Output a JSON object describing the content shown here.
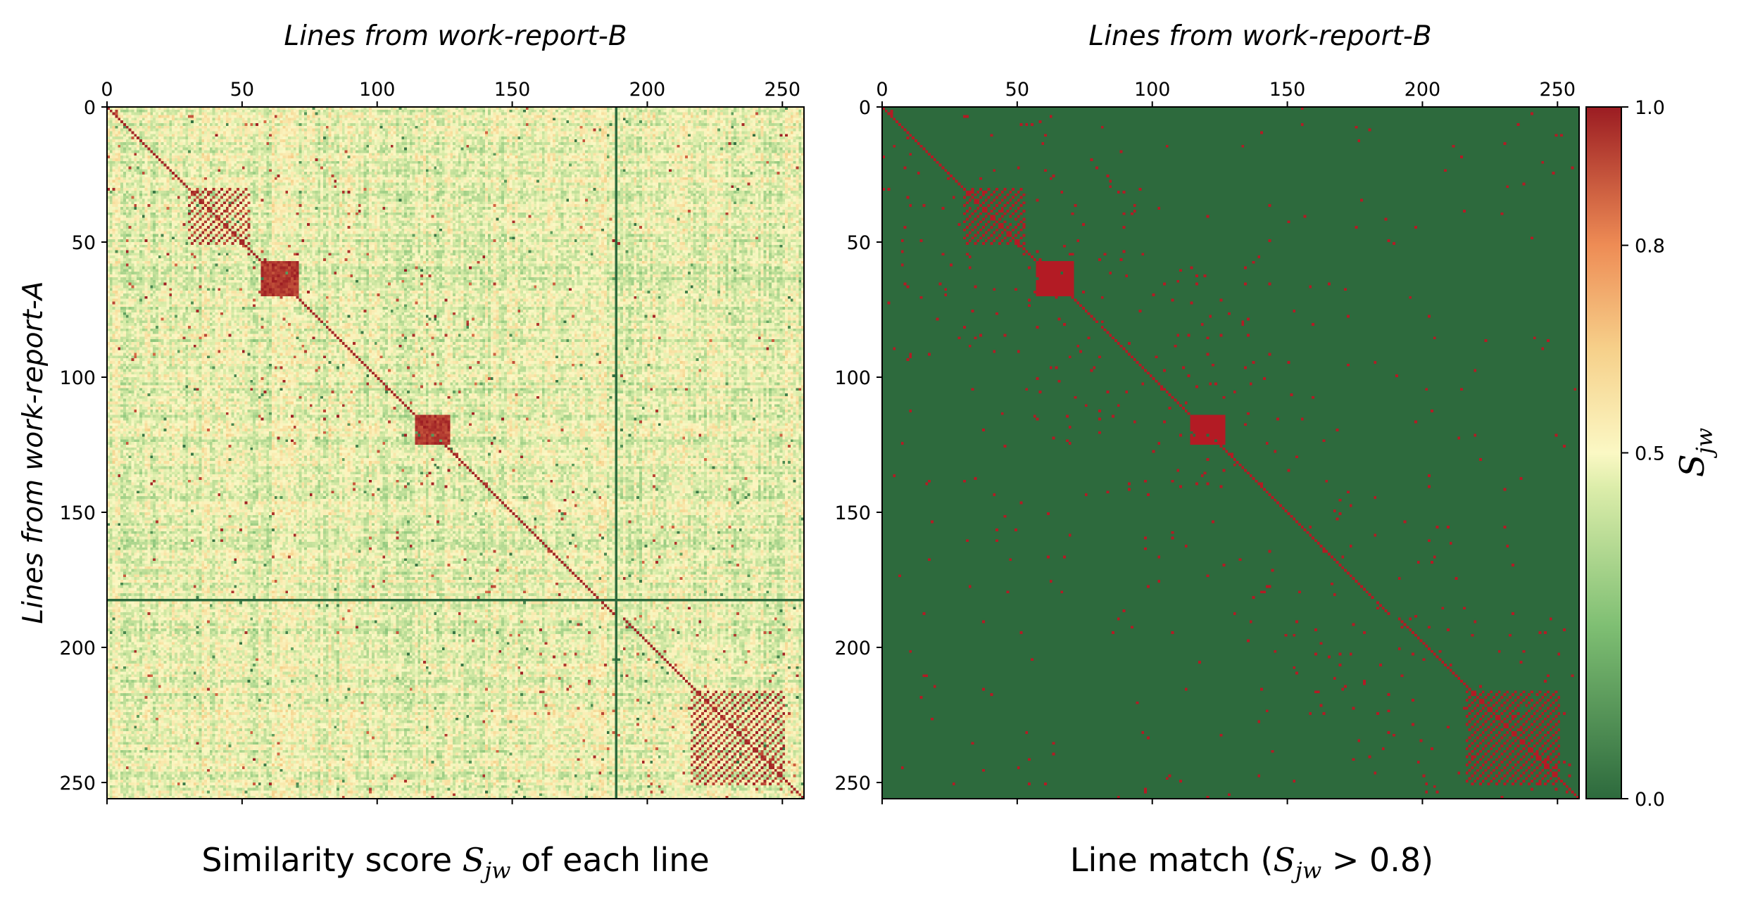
{
  "chart_data": [
    {
      "type": "heatmap",
      "xlabel": "Lines from work-report-B",
      "ylabel": "Lines from work-report-A",
      "x_ticks": [
        0,
        50,
        100,
        150,
        200,
        250
      ],
      "y_ticks": [
        0,
        50,
        100,
        150,
        200,
        250
      ],
      "xlim": [
        0,
        258
      ],
      "ylim": [
        0,
        256
      ],
      "n_cols": 258,
      "n_rows": 256,
      "value_range": [
        0.0,
        1.0
      ],
      "caption_prefix": "Similarity score ",
      "caption_symbol": "S",
      "caption_subscript": "jw",
      "caption_suffix": " of each line",
      "colorscale": [
        "#2d6a3d",
        "#f7f6c0",
        "#f4b06b",
        "#9b1c22"
      ],
      "empty_row": 182,
      "empty_col": 188,
      "diagonal_value": 1.0,
      "off_diagonal_typical": 0.45
    },
    {
      "type": "heatmap",
      "xlabel": "Lines from work-report-B",
      "ylabel": "",
      "x_ticks": [
        0,
        50,
        100,
        150,
        200,
        250
      ],
      "y_ticks": [
        0,
        50,
        100,
        150,
        200,
        250
      ],
      "xlim": [
        0,
        258
      ],
      "ylim": [
        0,
        256
      ],
      "n_cols": 258,
      "n_rows": 256,
      "threshold": 0.8,
      "caption_prefix": "Line match (",
      "caption_symbol": "S",
      "caption_subscript": "jw",
      "caption_suffix": " > 0.8)",
      "match_color": "#b31b24",
      "background_color": "#2d6a3d"
    }
  ],
  "colorbar": {
    "ticks": [
      "1.0",
      "0.8",
      "0.5",
      "0.0"
    ],
    "tick_values": [
      1.0,
      0.8,
      0.5,
      0.0
    ],
    "label_symbol": "S",
    "label_subscript": "jw",
    "stops": [
      {
        "value": 0.0,
        "color": "#2d6a3d"
      },
      {
        "value": 0.25,
        "color": "#7fbf73"
      },
      {
        "value": 0.45,
        "color": "#dcedaa"
      },
      {
        "value": 0.5,
        "color": "#fbf8c4"
      },
      {
        "value": 0.65,
        "color": "#f6d08a"
      },
      {
        "value": 0.8,
        "color": "#ee8c55"
      },
      {
        "value": 1.0,
        "color": "#9b1c22"
      }
    ]
  },
  "block_regions": [
    {
      "r0": 30,
      "r1": 50,
      "c0": 30,
      "c1": 52
    },
    {
      "r0": 57,
      "r1": 69,
      "c0": 57,
      "c1": 70
    },
    {
      "r0": 114,
      "r1": 124,
      "c0": 114,
      "c1": 126
    },
    {
      "r0": 216,
      "r1": 250,
      "c0": 216,
      "c1": 250
    }
  ]
}
